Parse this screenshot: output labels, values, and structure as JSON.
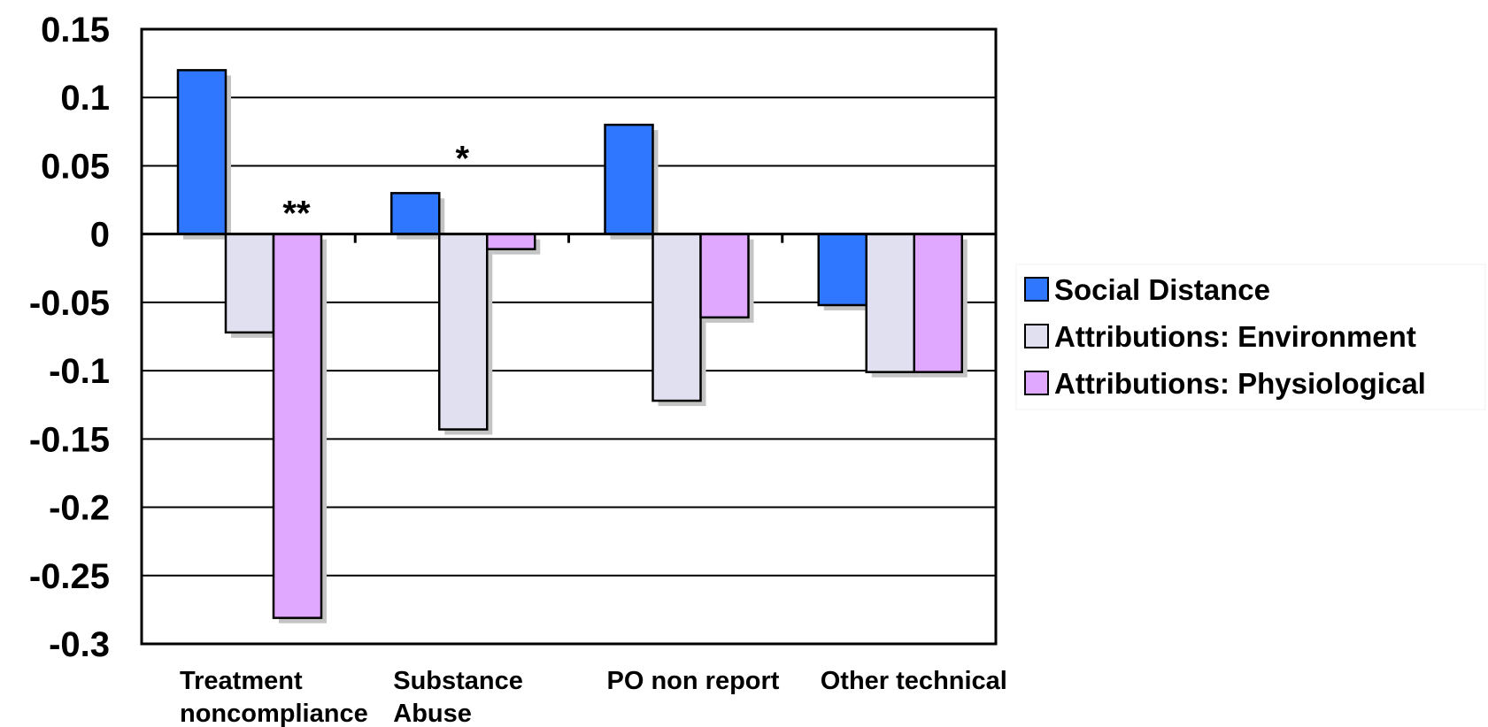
{
  "chart_data": {
    "type": "bar",
    "title": "",
    "xlabel": "",
    "ylabel": "",
    "ylim": [
      -0.3,
      0.15
    ],
    "yticks": [
      0.15,
      0.1,
      0.05,
      0,
      -0.05,
      -0.1,
      -0.15,
      -0.2,
      -0.25,
      -0.3
    ],
    "ytick_labels": [
      "0.15",
      "0.1",
      "0.05",
      "0",
      "-0.05",
      "-0.1",
      "-0.15",
      "-0.2",
      "-0.25",
      "-0.3"
    ],
    "grid": true,
    "legend_position": "right",
    "categories": [
      [
        "Treatment",
        "noncompliance"
      ],
      [
        "Substance",
        "Abuse"
      ],
      [
        "PO non report"
      ],
      [
        "Other technical"
      ]
    ],
    "series": [
      {
        "name": "Social Distance",
        "color": "#3077FF",
        "values": [
          0.12,
          0.03,
          0.08,
          -0.052
        ]
      },
      {
        "name": "Attributions: Environment",
        "color": "#E1E0F0",
        "values": [
          -0.072,
          -0.143,
          -0.122,
          -0.101
        ]
      },
      {
        "name": "Attributions: Physiological",
        "color": "#E0A8FF",
        "values": [
          -0.281,
          -0.011,
          -0.061,
          -0.101
        ]
      }
    ],
    "annotations": [
      {
        "text": "**",
        "category_index": 0
      },
      {
        "text": "*",
        "category_index": 1
      }
    ]
  }
}
